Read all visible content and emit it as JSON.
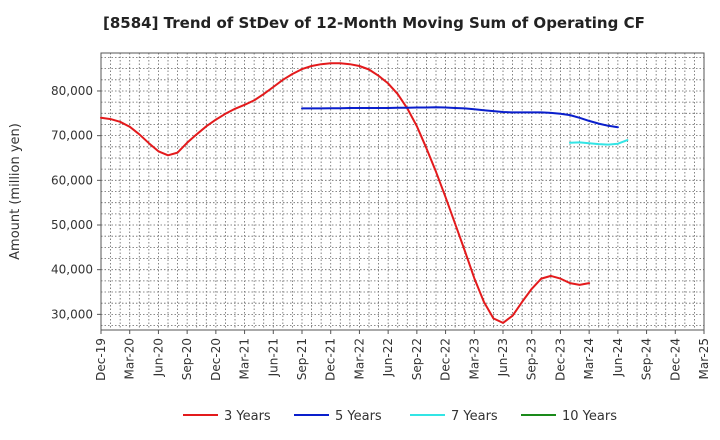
{
  "chart_data": {
    "type": "line",
    "title": "[8584]  Trend of StDev of 12-Month Moving Sum of Operating CF",
    "xlabel": "",
    "ylabel": "Amount (million yen)",
    "ylim": [
      26500,
      88500
    ],
    "yticks": [
      30000,
      40000,
      50000,
      60000,
      70000,
      80000
    ],
    "ytick_labels": [
      "30,000",
      "40,000",
      "50,000",
      "60,000",
      "70,000",
      "80,000"
    ],
    "categories": [
      "Dec-19",
      "Mar-20",
      "Jun-20",
      "Sep-20",
      "Dec-20",
      "Mar-21",
      "Jun-21",
      "Sep-21",
      "Dec-21",
      "Mar-22",
      "Jun-22",
      "Sep-22",
      "Dec-22",
      "Mar-23",
      "Jun-23",
      "Sep-23",
      "Dec-23",
      "Mar-24",
      "Jun-24",
      "Sep-24",
      "Dec-24",
      "Mar-25"
    ],
    "grid": true,
    "legend_position": "bottom",
    "series": [
      {
        "name": "3 Years",
        "color": "#e31a1c",
        "x": [
          0,
          1,
          2,
          3,
          4,
          5,
          6,
          7,
          8,
          9,
          10,
          11,
          12,
          13,
          14,
          15,
          16,
          17,
          18,
          19,
          20,
          21,
          22,
          23,
          24,
          25,
          26,
          27,
          28,
          29,
          30,
          31,
          32,
          33,
          34,
          35,
          36,
          37,
          38,
          39,
          40,
          41,
          42,
          43,
          44,
          45,
          46,
          47,
          48,
          49,
          50,
          51
        ],
        "values": [
          74000,
          73700,
          73100,
          72000,
          70300,
          68300,
          66500,
          65600,
          66200,
          68400,
          70300,
          72100,
          73600,
          74900,
          76000,
          76900,
          77900,
          79300,
          80900,
          82500,
          83800,
          84900,
          85600,
          86000,
          86200,
          86200,
          86000,
          85600,
          84800,
          83400,
          81700,
          79300,
          76100,
          72100,
          67200,
          61900,
          56200,
          50300,
          44300,
          38100,
          32800,
          29100,
          28100,
          29700,
          32800,
          35700,
          38000,
          38600,
          38000,
          37000,
          36600,
          37000
        ]
      },
      {
        "name": "5 Years",
        "color": "#0a1fcc",
        "x": [
          21,
          22,
          23,
          24,
          25,
          26,
          27,
          28,
          29,
          30,
          31,
          32,
          33,
          34,
          35,
          36,
          37,
          38,
          39,
          40,
          41,
          42,
          43,
          44,
          45,
          46,
          47,
          48,
          49,
          50,
          51,
          52,
          53,
          54
        ],
        "values": [
          76100,
          76100,
          76100,
          76150,
          76150,
          76200,
          76200,
          76200,
          76200,
          76200,
          76250,
          76250,
          76300,
          76300,
          76350,
          76300,
          76200,
          76100,
          75900,
          75700,
          75500,
          75300,
          75200,
          75200,
          75200,
          75200,
          75100,
          74900,
          74600,
          74000,
          73300,
          72700,
          72200,
          71900
        ]
      },
      {
        "name": "7 Years",
        "color": "#33e5e5",
        "x": [
          49,
          50,
          51,
          52,
          53,
          54,
          55
        ],
        "values": [
          68400,
          68500,
          68300,
          68100,
          68000,
          68200,
          69000
        ]
      },
      {
        "name": "10 Years",
        "color": "#1a8a1a",
        "x": [],
        "values": []
      }
    ]
  }
}
